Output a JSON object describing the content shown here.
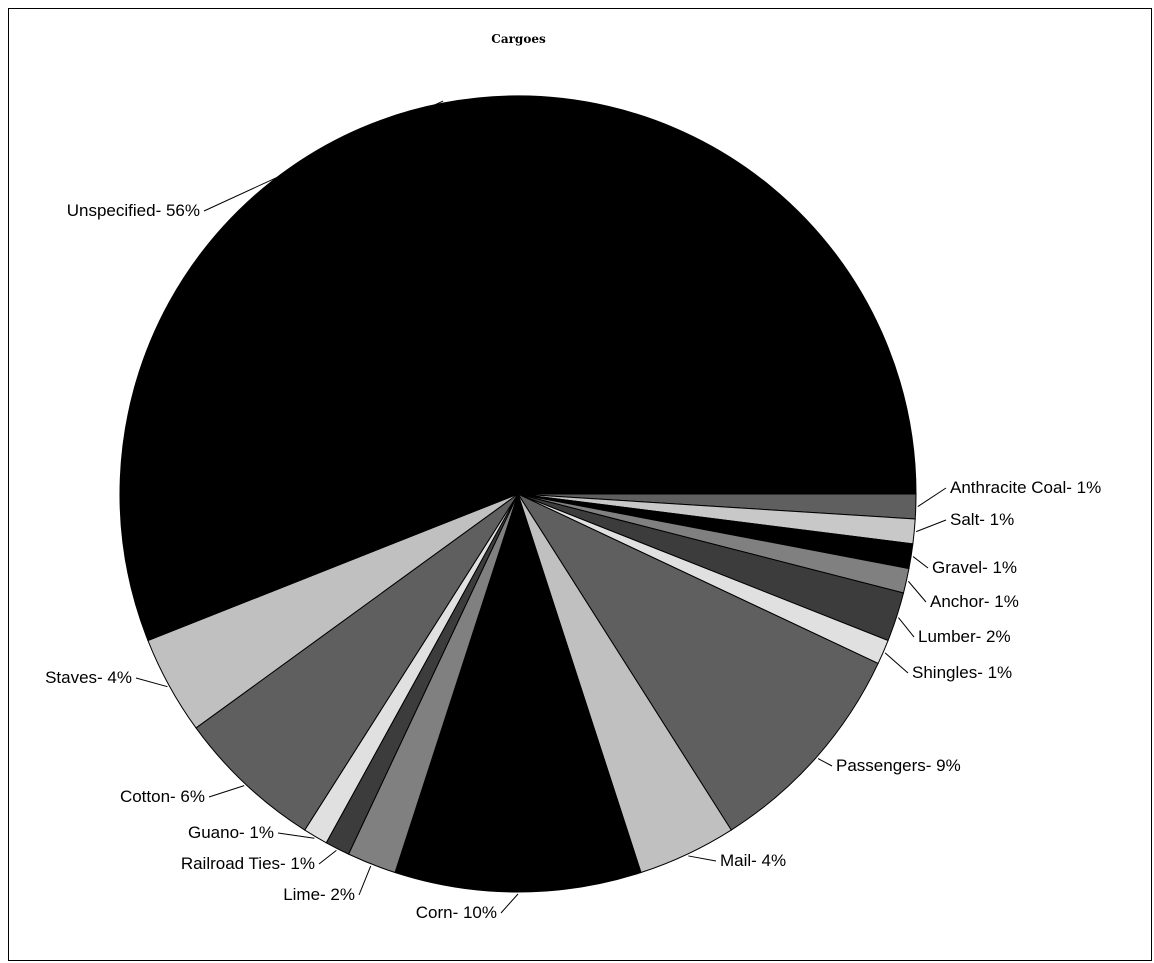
{
  "chart_data": {
    "type": "pie",
    "title": "Cargoes",
    "start_angle_deg": 0,
    "direction": "clockwise",
    "slices": [
      {
        "label": "Anthracite Coal- 1%",
        "name": "Anthracite Coal",
        "value": 1,
        "color": "#5f5f5f"
      },
      {
        "label": "Salt- 1%",
        "name": "Salt",
        "value": 1,
        "color": "#c8c8c8"
      },
      {
        "label": "Gravel- 1%",
        "name": "Gravel",
        "value": 1,
        "color": "#000000"
      },
      {
        "label": "Anchor- 1%",
        "name": "Anchor",
        "value": 1,
        "color": "#808080"
      },
      {
        "label": "Lumber- 2%",
        "name": "Lumber",
        "value": 2,
        "color": "#3c3c3c"
      },
      {
        "label": "Shingles- 1%",
        "name": "Shingles",
        "value": 1,
        "color": "#e0e0e0"
      },
      {
        "label": "Passengers- 9%",
        "name": "Passengers",
        "value": 9,
        "color": "#5f5f5f"
      },
      {
        "label": "Mail- 4%",
        "name": "Mail",
        "value": 4,
        "color": "#c0c0c0"
      },
      {
        "label": "Corn- 10%",
        "name": "Corn",
        "value": 10,
        "color": "#000000"
      },
      {
        "label": "Lime- 2%",
        "name": "Lime",
        "value": 2,
        "color": "#808080"
      },
      {
        "label": "Railroad Ties- 1%",
        "name": "Railroad Ties",
        "value": 1,
        "color": "#3c3c3c"
      },
      {
        "label": "Guano- 1%",
        "name": "Guano",
        "value": 1,
        "color": "#e0e0e0"
      },
      {
        "label": "Cotton- 6%",
        "name": "Cotton",
        "value": 6,
        "color": "#5f5f5f"
      },
      {
        "label": "Staves- 4%",
        "name": "Staves",
        "value": 4,
        "color": "#c0c0c0"
      },
      {
        "label": "Unspecified- 56%",
        "name": "Unspecified",
        "value": 56,
        "color": "#000000"
      }
    ]
  }
}
